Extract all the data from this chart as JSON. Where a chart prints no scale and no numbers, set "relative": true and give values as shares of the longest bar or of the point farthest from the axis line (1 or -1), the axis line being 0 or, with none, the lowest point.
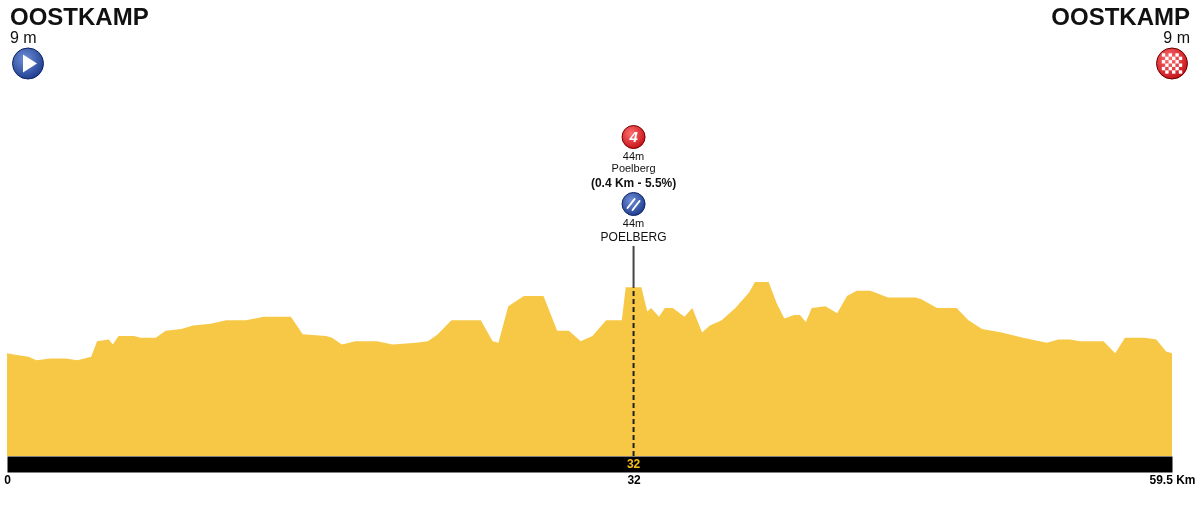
{
  "chart_data": {
    "type": "area",
    "color": "#f7c846",
    "relative": true,
    "x": [
      0,
      0.5,
      1.1,
      1.5,
      2.2,
      3.0,
      3.6,
      4.3,
      4.6,
      5.2,
      5.4,
      5.7,
      6.5,
      6.8,
      7.6,
      8.1,
      8.9,
      9.5,
      10.4,
      11.2,
      12.2,
      13.1,
      14.5,
      15.1,
      16.3,
      16.6,
      17.1,
      17.8,
      18.9,
      19.7,
      20.9,
      21.5,
      22.0,
      22.7,
      24.2,
      24.8,
      25.1,
      25.6,
      26.4,
      27.4,
      28.1,
      28.7,
      29.3,
      29.9,
      30.6,
      31.4,
      31.6,
      32.4,
      32.7,
      32.9,
      33.3,
      33.6,
      34.0,
      34.6,
      35.0,
      35.5,
      35.9,
      36.5,
      37.2,
      37.9,
      38.2,
      38.9,
      39.3,
      39.7,
      40.2,
      40.5,
      40.8,
      41.1,
      41.8,
      42.4,
      42.9,
      43.4,
      44.1,
      45.0,
      46.4,
      46.7,
      47.5,
      48.5,
      49.1,
      49.8,
      50.8,
      51.9,
      53.1,
      53.7,
      54.3,
      54.8,
      56.0,
      56.6,
      57.1,
      58.1,
      58.7,
      59.2,
      59.5
    ],
    "values": [
      0.59,
      0.58,
      0.57,
      0.55,
      0.56,
      0.56,
      0.55,
      0.57,
      0.66,
      0.67,
      0.64,
      0.69,
      0.69,
      0.68,
      0.68,
      0.72,
      0.73,
      0.75,
      0.76,
      0.78,
      0.78,
      0.8,
      0.8,
      0.7,
      0.69,
      0.68,
      0.64,
      0.66,
      0.66,
      0.64,
      0.65,
      0.66,
      0.7,
      0.78,
      0.78,
      0.66,
      0.65,
      0.86,
      0.92,
      0.92,
      0.72,
      0.72,
      0.66,
      0.69,
      0.78,
      0.78,
      0.97,
      0.97,
      0.83,
      0.85,
      0.8,
      0.85,
      0.85,
      0.8,
      0.85,
      0.71,
      0.75,
      0.78,
      0.85,
      0.94,
      1,
      1,
      0.88,
      0.79,
      0.81,
      0.81,
      0.77,
      0.85,
      0.86,
      0.82,
      0.92,
      0.95,
      0.95,
      0.91,
      0.91,
      0.9,
      0.85,
      0.85,
      0.78,
      0.73,
      0.71,
      0.68,
      0.65,
      0.67,
      0.67,
      0.66,
      0.66,
      0.59,
      0.68,
      0.68,
      0.67,
      0.6,
      0.59
    ],
    "xlim": [
      0,
      59.5
    ],
    "xticks": [
      0,
      32,
      {
        "value": 59.5,
        "label": "59.5 Km"
      }
    ],
    "tick_labels": "x",
    "ref_lines": [
      {
        "axis": "x",
        "value": 32,
        "label": "32",
        "line_style": "dashed",
        "color": "#222222"
      }
    ],
    "annotations": [
      "OOSTKAMP",
      "9 m",
      "OOSTKAMP",
      "9 m",
      "4",
      "44m",
      "Poelberg",
      "(0.4 Km - 5.5%)",
      "44m",
      "POELBERG"
    ]
  }
}
